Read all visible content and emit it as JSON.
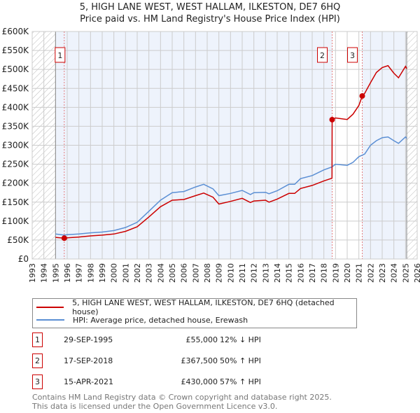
{
  "title_line1": "5, HIGH LANE WEST, WEST HALLAM, ILKESTON, DE7 6HQ",
  "title_line2": "Price paid vs. HM Land Registry's House Price Index (HPI)",
  "chart_data": {
    "type": "line",
    "xlim": [
      1993,
      2026
    ],
    "ylim": [
      0,
      600000
    ],
    "yticks": [
      0,
      50000,
      100000,
      150000,
      200000,
      250000,
      300000,
      350000,
      400000,
      450000,
      500000,
      550000,
      600000
    ],
    "ytick_labels": [
      "£0",
      "£50K",
      "£100K",
      "£150K",
      "£200K",
      "£250K",
      "£300K",
      "£350K",
      "£400K",
      "£450K",
      "£500K",
      "£550K",
      "£600K"
    ],
    "xticks": [
      1993,
      1994,
      1995,
      1996,
      1997,
      1998,
      1999,
      2000,
      2001,
      2002,
      2003,
      2004,
      2005,
      2006,
      2007,
      2008,
      2009,
      2010,
      2011,
      2012,
      2013,
      2014,
      2015,
      2016,
      2017,
      2018,
      2019,
      2020,
      2021,
      2022,
      2023,
      2024,
      2025,
      2026
    ],
    "grid": true,
    "hatched_before": 1995,
    "hatched_after": 2025.1,
    "series": [
      {
        "name": "5, HIGH LANE WEST, WEST HALLAM, ILKESTON, DE7 6HQ (detached house)",
        "color": "#cc0000",
        "x": [
          1995.0,
          1995.75,
          1996,
          1997,
          1998,
          1999,
          2000,
          2001,
          2002,
          2003,
          2004,
          2005,
          2006,
          2007,
          2007.7,
          2008.5,
          2009.0,
          2010,
          2011,
          2011.7,
          2012,
          2013,
          2013.3,
          2014,
          2015,
          2015.5,
          2016,
          2017,
          2018,
          2018.7,
          2018.71,
          2019,
          2020,
          2020.5,
          2021,
          2021.29,
          2021.5,
          2022,
          2022.5,
          2023,
          2023.5,
          2024,
          2024.4,
          2025,
          2025.1
        ],
        "y": [
          57000,
          55000,
          56000,
          58000,
          61000,
          63000,
          66000,
          73000,
          85000,
          111000,
          138000,
          155000,
          157000,
          167000,
          174000,
          163000,
          145000,
          152000,
          160000,
          149000,
          153000,
          155000,
          150000,
          158000,
          173000,
          173000,
          186000,
          194000,
          206000,
          213000,
          367500,
          372000,
          368000,
          382000,
          405000,
          430000,
          437000,
          465000,
          492000,
          505000,
          510000,
          490000,
          478000,
          508000,
          502000
        ]
      },
      {
        "name": "HPI: Average price, detached house, Erewash",
        "color": "#5b8fd4",
        "x": [
          1995.0,
          1995.75,
          1996,
          1997,
          1998,
          1999,
          2000,
          2001,
          2002,
          2003,
          2004,
          2005,
          2006,
          2007,
          2007.7,
          2008.5,
          2009.0,
          2010,
          2011,
          2011.7,
          2012,
          2013,
          2013.3,
          2014,
          2015,
          2015.5,
          2016,
          2017,
          2018,
          2018.7,
          2019,
          2020,
          2020.5,
          2021,
          2021.5,
          2022,
          2022.5,
          2023,
          2023.5,
          2024,
          2024.4,
          2025,
          2025.1
        ],
        "y": [
          66000,
          63000,
          64000,
          66000,
          69000,
          71000,
          75000,
          83000,
          97000,
          126000,
          155000,
          175000,
          178000,
          190000,
          197000,
          185000,
          167000,
          173000,
          181000,
          170000,
          175000,
          176000,
          172000,
          180000,
          197000,
          197000,
          212000,
          220000,
          235000,
          243000,
          250000,
          247000,
          255000,
          270000,
          277000,
          300000,
          312000,
          320000,
          322000,
          312000,
          305000,
          322000,
          318000
        ]
      }
    ],
    "sales": [
      {
        "label": "1",
        "x": 1995.75,
        "price": 55000,
        "date": "29-SEP-1995",
        "price_text": "£55,000",
        "hpi_text": "12% ↓ HPI"
      },
      {
        "label": "2",
        "x": 2018.71,
        "price": 367500,
        "date": "17-SEP-2018",
        "price_text": "£367,500",
        "hpi_text": "50% ↑ HPI"
      },
      {
        "label": "3",
        "x": 2021.29,
        "price": 430000,
        "date": "15-APR-2021",
        "price_text": "£430,000",
        "hpi_text": "57% ↑ HPI"
      }
    ]
  },
  "legend": {
    "red": "5, HIGH LANE WEST, WEST HALLAM, ILKESTON, DE7 6HQ (detached house)",
    "blue": "HPI: Average price, detached house, Erewash"
  },
  "footer": {
    "line1": "Contains HM Land Registry data © Crown copyright and database right 2025.",
    "line2": "This data is licensed under the Open Government Licence v3.0."
  }
}
